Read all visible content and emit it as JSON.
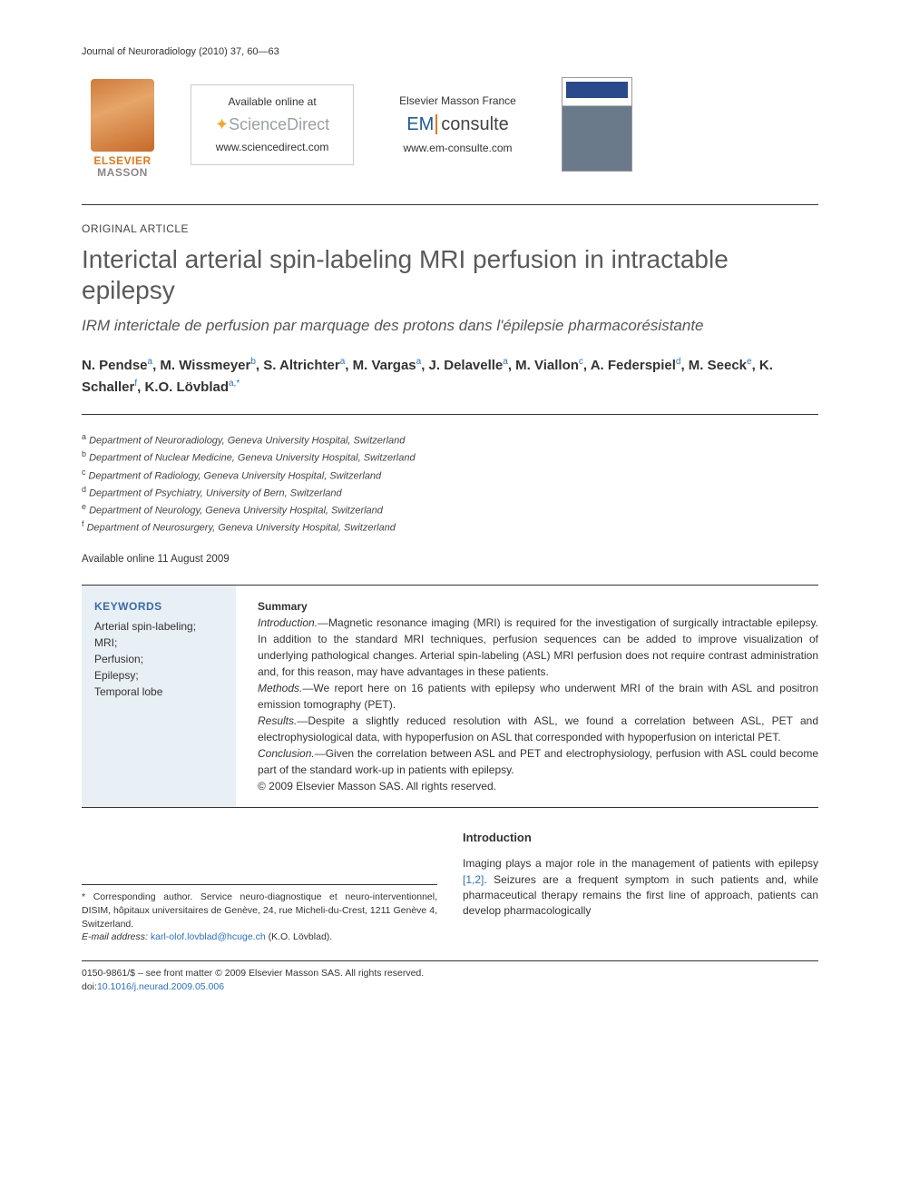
{
  "journal_header": "Journal of Neuroradiology (2010) 37, 60—63",
  "banner": {
    "publisher_logo_top": "ELSEVIER",
    "publisher_logo_bottom": "MASSON",
    "available_label": "Available online at",
    "sciencedirect": "ScienceDirect",
    "sd_url": "www.sciencedirect.com",
    "em_label": "Elsevier Masson France",
    "em_logo_left": "EM",
    "em_logo_right": "consulte",
    "em_url": "www.em-consulte.com"
  },
  "article_type": "ORIGINAL ARTICLE",
  "title": "Interictal arterial spin-labeling MRI perfusion in intractable epilepsy",
  "subtitle": "IRM interictale de perfusion par marquage des protons dans l'épilepsie pharmacorésistante",
  "authors_line1": "N. Pendse",
  "authors": [
    {
      "name": "N. Pendse",
      "aff": "a"
    },
    {
      "name": "M. Wissmeyer",
      "aff": "b"
    },
    {
      "name": "S. Altrichter",
      "aff": "a"
    },
    {
      "name": "M. Vargas",
      "aff": "a"
    },
    {
      "name": "J. Delavelle",
      "aff": "a"
    },
    {
      "name": "M. Viallon",
      "aff": "c"
    },
    {
      "name": "A. Federspiel",
      "aff": "d"
    },
    {
      "name": "M. Seeck",
      "aff": "e"
    },
    {
      "name": "K. Schaller",
      "aff": "f"
    },
    {
      "name": "K.O. Lövblad",
      "aff": "a",
      "corr": true
    }
  ],
  "affiliations": [
    {
      "sup": "a",
      "text": "Department of Neuroradiology, Geneva University Hospital, Switzerland"
    },
    {
      "sup": "b",
      "text": "Department of Nuclear Medicine, Geneva University Hospital, Switzerland"
    },
    {
      "sup": "c",
      "text": "Department of Radiology, Geneva University Hospital, Switzerland"
    },
    {
      "sup": "d",
      "text": "Department of Psychiatry, University of Bern, Switzerland"
    },
    {
      "sup": "e",
      "text": "Department of Neurology, Geneva University Hospital, Switzerland"
    },
    {
      "sup": "f",
      "text": "Department of Neurosurgery, Geneva University Hospital, Switzerland"
    }
  ],
  "available_date": "Available online 11 August 2009",
  "keywords_head": "KEYWORDS",
  "keywords": "Arterial spin-labeling;\nMRI;\nPerfusion;\nEpilepsy;\nTemporal lobe",
  "summary_head": "Summary",
  "summary": {
    "intro_label": "Introduction.—",
    "intro": "Magnetic resonance imaging (MRI) is required for the investigation of surgically intractable epilepsy. In addition to the standard MRI techniques, perfusion sequences can be added to improve visualization of underlying pathological changes. Arterial spin-labeling (ASL) MRI perfusion does not require contrast administration and, for this reason, may have advantages in these patients.",
    "methods_label": "Methods.—",
    "methods": "We report here on 16 patients with epilepsy who underwent MRI of the brain with ASL and positron emission tomography (PET).",
    "results_label": "Results.—",
    "results": "Despite a slightly reduced resolution with ASL, we found a correlation between ASL, PET and electrophysiological data, with hypoperfusion on ASL that corresponded with hypoperfusion on interictal PET.",
    "conclusion_label": "Conclusion.—",
    "conclusion": "Given the correlation between ASL and PET and electrophysiology, perfusion with ASL could become part of the standard work-up in patients with epilepsy.",
    "copyright": "© 2009 Elsevier Masson SAS. All rights reserved."
  },
  "corresp": {
    "label": "* Corresponding author. ",
    "text": "Service neuro-diagnostique et neuro-interventionnel, DISIM, hôpitaux universitaires de Genève, 24, rue Micheli-du-Crest, 1211 Genève 4, Switzerland.",
    "email_label": "E-mail address: ",
    "email": "karl-olof.lovblad@hcuge.ch",
    "email_who": " (K.O. Lövblad)."
  },
  "intro_head": "Introduction",
  "intro_body_pre": "Imaging plays a major role in the management of patients with epilepsy ",
  "intro_refs": "[1,2]",
  "intro_body_post": ". Seizures are a frequent symptom in such patients and, while pharmaceutical therapy remains the first line of approach, patients can develop pharmacologically",
  "footer": {
    "line1": "0150-9861/$ – see front matter © 2009 Elsevier Masson SAS. All rights reserved.",
    "doi_label": "doi:",
    "doi": "10.1016/j.neurad.2009.05.006"
  },
  "colors": {
    "link": "#2b70c9",
    "accent_orange": "#e67817",
    "kw_bg": "#e8eff5",
    "kw_head": "#3a6aa8",
    "title_grey": "#5a5a5a"
  }
}
